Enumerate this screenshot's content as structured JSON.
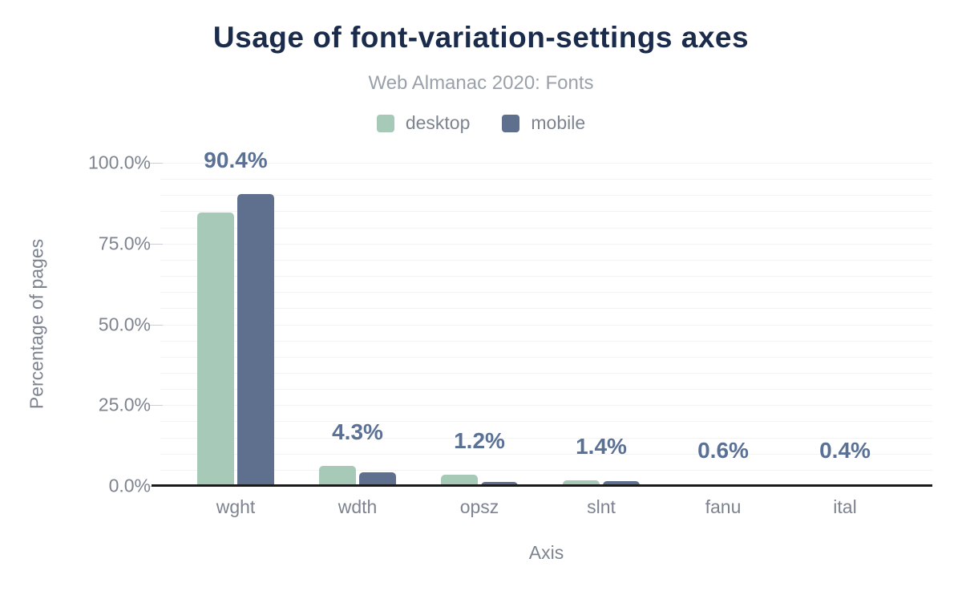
{
  "header": {
    "title": "Usage of font-variation-settings axes",
    "subtitle": "Web Almanac 2020: Fonts"
  },
  "colors": {
    "title": "#1b2b4b",
    "subtitle": "#9aa1aa",
    "axis_text": "#7d848f",
    "data_label": "#5a7094",
    "gridline": "#f3f3f4",
    "axis_line": "#1b1b1b",
    "desktop": "#a6c9b8",
    "mobile": "#5f708e"
  },
  "chart_data": {
    "type": "bar",
    "title": "Usage of font-variation-settings axes",
    "subtitle": "Web Almanac 2020: Fonts",
    "xlabel": "Axis",
    "ylabel": "Percentage of pages",
    "categories": [
      "wght",
      "wdth",
      "opsz",
      "slnt",
      "fanu",
      "ital"
    ],
    "series": [
      {
        "name": "desktop",
        "color": "#a6c9b8",
        "values": [
          84.5,
          6.2,
          3.4,
          1.7,
          0.5,
          0.6
        ]
      },
      {
        "name": "mobile",
        "color": "#5f708e",
        "values": [
          90.4,
          4.3,
          1.2,
          1.4,
          0.6,
          0.4
        ]
      }
    ],
    "data_labels": [
      "90.4%",
      "4.3%",
      "1.2%",
      "1.4%",
      "0.6%",
      "0.4%"
    ],
    "ylim": [
      0,
      100
    ],
    "yticks": [
      {
        "label": "100.0%",
        "value": 100
      },
      {
        "label": "75.0%",
        "value": 75
      },
      {
        "label": "50.0%",
        "value": 50
      },
      {
        "label": "25.0%",
        "value": 25
      },
      {
        "label": "0.0%",
        "value": 0
      }
    ],
    "grid": true,
    "grid_minor_step": 5,
    "legend_position": "top"
  }
}
